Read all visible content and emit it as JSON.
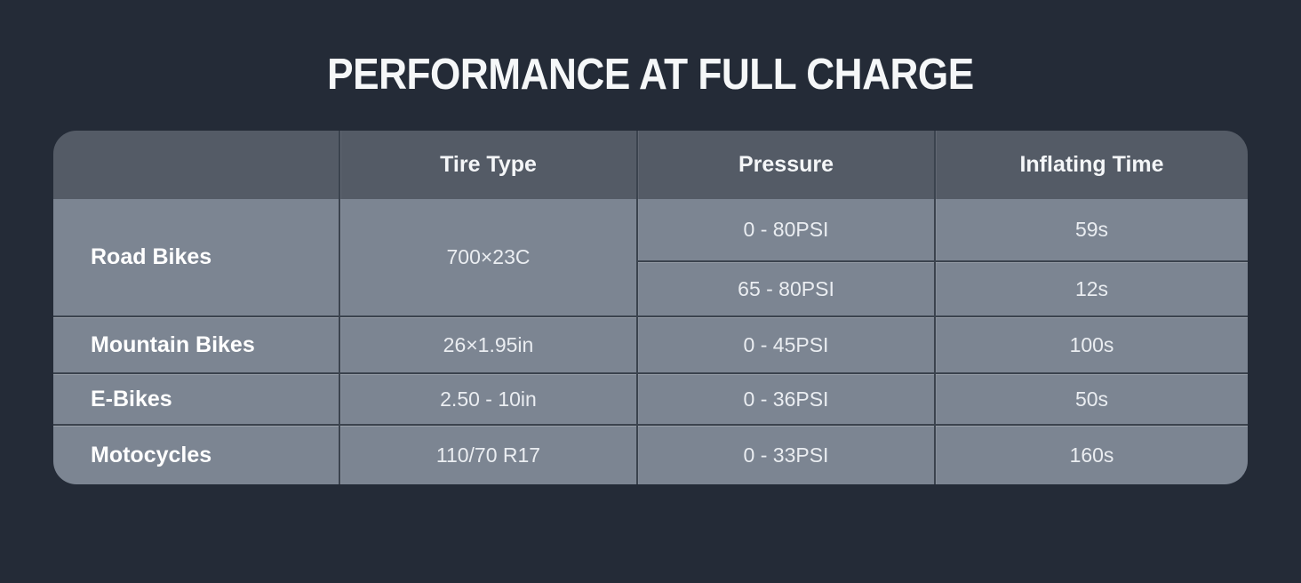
{
  "title": "PERFORMANCE AT FULL CHARGE",
  "colors": {
    "background": "#242b37",
    "header_bg": "#545b66",
    "body_bg": "#7c8592",
    "divider": "#3b434e",
    "title_text": "#f5f7f8",
    "cell_text": "#eaedf1"
  },
  "table": {
    "headers": [
      "",
      "Tire Type",
      "Pressure",
      "Inflating Time"
    ],
    "rows": [
      {
        "category": "Road Bikes",
        "tire_type": "700×23C",
        "entries": [
          {
            "pressure": "0 - 80PSI",
            "inflating_time": "59s"
          },
          {
            "pressure": "65 - 80PSI",
            "inflating_time": "12s"
          }
        ]
      },
      {
        "category": "Mountain Bikes",
        "tire_type": "26×1.95in",
        "entries": [
          {
            "pressure": "0 - 45PSI",
            "inflating_time": "100s"
          }
        ]
      },
      {
        "category": "E-Bikes",
        "tire_type": "2.50 - 10in",
        "entries": [
          {
            "pressure": "0 - 36PSI",
            "inflating_time": "50s"
          }
        ]
      },
      {
        "category": "Motocycles",
        "tire_type": "110/70 R17",
        "entries": [
          {
            "pressure": "0 - 33PSI",
            "inflating_time": "160s"
          }
        ]
      }
    ]
  },
  "chart_data": {
    "type": "table",
    "title": "PERFORMANCE AT FULL CHARGE",
    "columns": [
      "",
      "Tire Type",
      "Pressure",
      "Inflating Time"
    ],
    "rows": [
      [
        "Road Bikes",
        "700×23C",
        "0 - 80PSI",
        "59s"
      ],
      [
        "Road Bikes",
        "700×23C",
        "65 - 80PSI",
        "12s"
      ],
      [
        "Mountain Bikes",
        "26×1.95in",
        "0 - 45PSI",
        "100s"
      ],
      [
        "E-Bikes",
        "2.50 - 10in",
        "0 - 36PSI",
        "50s"
      ],
      [
        "Motocycles",
        "110/70 R17",
        "0 - 33PSI",
        "160s"
      ]
    ],
    "layout": {
      "merged_first_two_columns_for": "Road Bikes",
      "header_row": true,
      "grid": "dark 2px dividers on slate-blue cells"
    }
  }
}
